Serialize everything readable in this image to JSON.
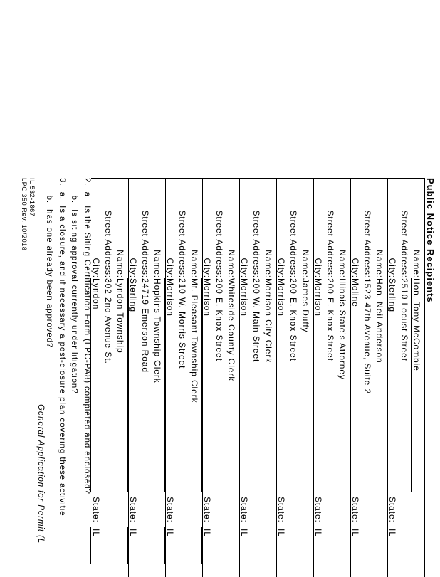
{
  "title": "Public Notice Recipients",
  "labels": {
    "name": "Name:",
    "street": "Street Address:",
    "city": "City:",
    "state": "State:"
  },
  "recipients": [
    {
      "name": "Hon. Tony McCombie",
      "street": "2510 Locust Street",
      "city": "Sterling",
      "state": "IL"
    },
    {
      "name": "Hon. Neil Anderson",
      "street": "1523 47th Avenue, Suite 2",
      "city": "Moline",
      "state": "IL"
    },
    {
      "name": "Illinois State's Attorney",
      "street": "200 E. Knox Street",
      "city": "Morrison",
      "state": "IL"
    },
    {
      "name": "James Duffy",
      "street": "200 E. Knox Street",
      "city": "Morrison",
      "state": "IL"
    },
    {
      "name": "Morrison City Clerk",
      "street": "200 W. Main Street",
      "city": "Morrison",
      "state": "IL"
    },
    {
      "name": "Whiteside County Clerk",
      "street": "200 E. Knox Street",
      "city": "Morrison",
      "state": "IL"
    },
    {
      "name": "Mt. Pleasant Township Clerk",
      "street": "210 W. Morris Street",
      "city": "Morrison",
      "state": "IL"
    },
    {
      "name": "Hopkins Township Clerk",
      "street": "24719 Emerson Road",
      "city": "Sterling",
      "state": "IL"
    },
    {
      "name": "Lyndon Township",
      "street": "302 2nd Avenue St.",
      "city": "Lyndon",
      "state": "IL"
    }
  ],
  "questions": [
    "2.  a.  Is the Siting Certification Form (LPC-PA8) completed and enclosed?",
    "      b.  Is siting approval currently under litigation?",
    "3.  a.  Is a closure, and if necessary a post-closure plan covering these activitie",
    "      b.  has one already been approved?"
  ],
  "general_app_title": "General Application for Permit (L",
  "footer": [
    "IL 532-1867",
    "LPC 350 Rev. 10/2018"
  ]
}
